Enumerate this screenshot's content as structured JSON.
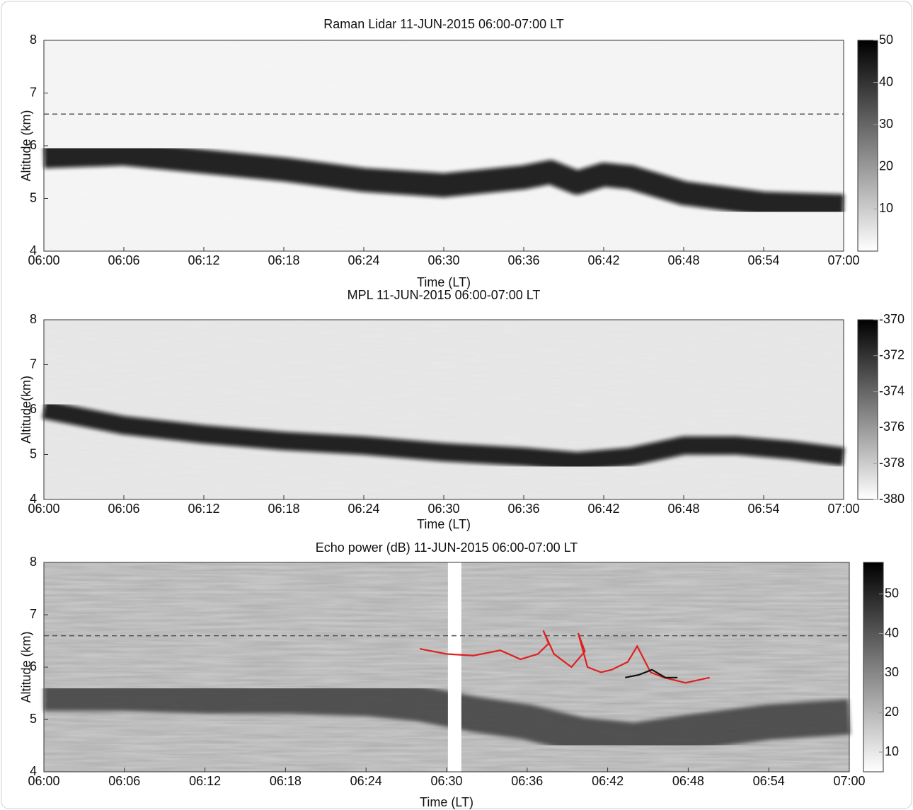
{
  "chart_data": [
    {
      "type": "heatmap",
      "title": "Raman Lidar 11-JUN-2015  06:00-07:00 LT",
      "xlabel": "Time (LT)",
      "ylabel": "Altitude (km)",
      "xlim": [
        0,
        60
      ],
      "xticks": [
        {
          "value": 0,
          "label": "06:00"
        },
        {
          "value": 6,
          "label": "06:06"
        },
        {
          "value": 12,
          "label": "06:12"
        },
        {
          "value": 18,
          "label": "06:18"
        },
        {
          "value": 24,
          "label": "06:24"
        },
        {
          "value": 30,
          "label": "06:30"
        },
        {
          "value": 36,
          "label": "06:36"
        },
        {
          "value": 42,
          "label": "06:42"
        },
        {
          "value": 48,
          "label": "06:48"
        },
        {
          "value": 54,
          "label": "06:54"
        },
        {
          "value": 60,
          "label": "07:00"
        }
      ],
      "ylim": [
        4,
        8
      ],
      "yticks": [
        4,
        5,
        6,
        7,
        8
      ],
      "clim": [
        0,
        50
      ],
      "cticks": [
        10,
        20,
        30,
        40,
        50
      ],
      "reference_line": 6.6,
      "layer": {
        "x": [
          0,
          6,
          12,
          18,
          24,
          30,
          36,
          38,
          40,
          42,
          44,
          48,
          54,
          60
        ],
        "values": [
          5.8,
          5.85,
          5.7,
          5.55,
          5.35,
          5.25,
          5.4,
          5.5,
          5.3,
          5.45,
          5.4,
          5.1,
          4.9,
          4.85
        ],
        "color": "#111111"
      }
    },
    {
      "type": "heatmap",
      "title": "MPL 11-JUN-2015 06:00-07:00 LT",
      "xlabel": "Time (LT)",
      "ylabel": "Altitude(km)",
      "xlim": [
        0,
        60
      ],
      "xticks": [
        {
          "value": 0,
          "label": "06:00"
        },
        {
          "value": 6,
          "label": "06:06"
        },
        {
          "value": 12,
          "label": "06:12"
        },
        {
          "value": 18,
          "label": "06:18"
        },
        {
          "value": 24,
          "label": "06:24"
        },
        {
          "value": 30,
          "label": "06:30"
        },
        {
          "value": 36,
          "label": "06:36"
        },
        {
          "value": 42,
          "label": "06:42"
        },
        {
          "value": 48,
          "label": "06:48"
        },
        {
          "value": 54,
          "label": "06:54"
        },
        {
          "value": 60,
          "label": "07:00"
        }
      ],
      "ylim": [
        4,
        8
      ],
      "yticks": [
        4,
        5,
        6,
        7,
        8
      ],
      "clim": [
        -380,
        -370
      ],
      "cticks": [
        -370,
        -372,
        -374,
        -376,
        -378,
        -380
      ],
      "layer": {
        "x": [
          0,
          6,
          12,
          18,
          24,
          30,
          36,
          40,
          44,
          48,
          52,
          56,
          60
        ],
        "values": [
          6.0,
          5.65,
          5.45,
          5.3,
          5.2,
          5.05,
          4.95,
          4.85,
          4.95,
          5.2,
          5.2,
          5.1,
          4.95
        ],
        "color": "#0a0a0a"
      }
    },
    {
      "type": "heatmap",
      "title": "Echo power (dB) 11-JUN-2015  06:00-07:00 LT",
      "xlabel": "Time (LT)",
      "ylabel": "Altitude (km)",
      "xlim": [
        0,
        60
      ],
      "xticks": [
        {
          "value": 0,
          "label": "06:00"
        },
        {
          "value": 6,
          "label": "06:06"
        },
        {
          "value": 12,
          "label": "06:12"
        },
        {
          "value": 18,
          "label": "06:18"
        },
        {
          "value": 24,
          "label": "06:24"
        },
        {
          "value": 30,
          "label": "06:30"
        },
        {
          "value": 36,
          "label": "06:36"
        },
        {
          "value": 42,
          "label": "06:42"
        },
        {
          "value": 48,
          "label": "06:48"
        },
        {
          "value": 54,
          "label": "06:54"
        },
        {
          "value": 60,
          "label": "07:00"
        }
      ],
      "ylim": [
        4,
        8
      ],
      "yticks": [
        4,
        5,
        6,
        7,
        8
      ],
      "clim": [
        5,
        58
      ],
      "cticks": [
        10,
        20,
        30,
        40,
        50
      ],
      "reference_line": 6.6,
      "gap": [
        30.1,
        31.1
      ],
      "layer": {
        "x": [
          0,
          6,
          12,
          18,
          24,
          28,
          32,
          36,
          40,
          44,
          48,
          54,
          60
        ],
        "values": [
          5.5,
          5.5,
          5.45,
          5.45,
          5.4,
          5.3,
          5.1,
          4.95,
          4.7,
          4.6,
          4.75,
          4.95,
          5.05
        ],
        "color": "#444444"
      },
      "traces": [
        {
          "color": "#e02020",
          "x": [
            28,
            30,
            32,
            34,
            35.5,
            36.8,
            37.6,
            37.2,
            38,
            39.3,
            40.3,
            39.8,
            40.5,
            41.5,
            42.3,
            43.5,
            44.2,
            45.2,
            46.2,
            47.8,
            49.6
          ],
          "values": [
            6.35,
            6.25,
            6.22,
            6.32,
            6.15,
            6.25,
            6.45,
            6.7,
            6.25,
            6.0,
            6.3,
            6.65,
            6.0,
            5.9,
            5.95,
            6.1,
            6.4,
            5.9,
            5.8,
            5.7,
            5.8
          ]
        },
        {
          "color": "#111111",
          "x": [
            43.3,
            44.3,
            45.3,
            46.3,
            47.2
          ],
          "values": [
            5.8,
            5.85,
            5.95,
            5.8,
            5.8
          ]
        }
      ]
    }
  ]
}
